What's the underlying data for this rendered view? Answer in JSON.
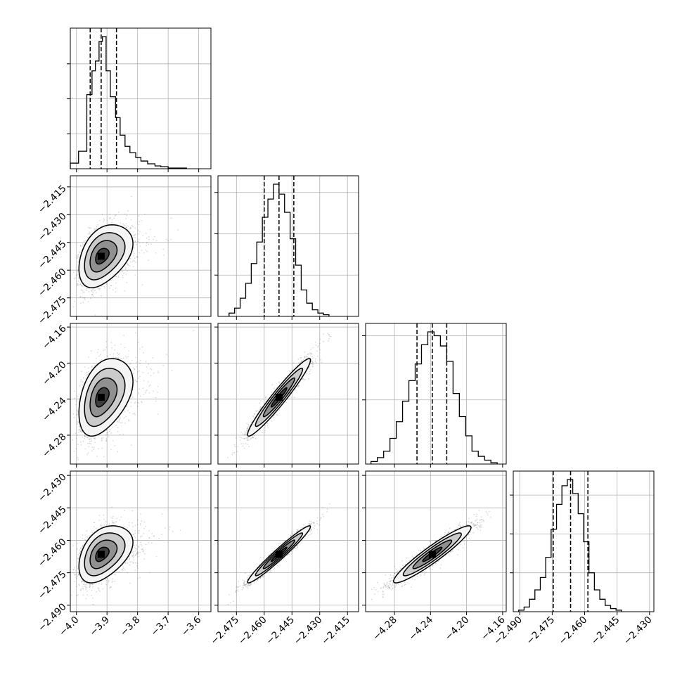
{
  "chart_data": {
    "type": "corner",
    "title": "",
    "parameters": [
      {
        "label": "",
        "range": [
          -4.02,
          -3.56
        ],
        "ticks": [
          -4.0,
          -3.9,
          -3.8,
          -3.7,
          -3.6
        ],
        "tick_labels": [
          "−4.0",
          "−3.9",
          "−3.8",
          "−3.7",
          "−3.6"
        ],
        "quantiles": [
          -3.955,
          -3.919,
          -3.869
        ],
        "histogram": {
          "edges": [
            -4.02,
            -3.993,
            -3.966,
            -3.949,
            -3.938,
            -3.926,
            -3.915,
            -3.903,
            -3.889,
            -3.872,
            -3.857,
            -3.841,
            -3.825,
            -3.806,
            -3.789,
            -3.767,
            -3.743,
            -3.724,
            -3.7,
            -3.672,
            -3.64
          ],
          "counts": [
            8,
            25,
            106,
            140,
            154,
            182,
            189,
            140,
            103,
            73,
            48,
            32,
            23,
            16,
            11,
            7,
            4,
            3,
            1,
            1
          ]
        }
      },
      {
        "label": "",
        "range": [
          -2.485,
          -2.409
        ],
        "ticks": [
          -2.415,
          -2.43,
          -2.445,
          -2.46,
          -2.475
        ],
        "tick_labels": [
          "−2.415",
          "−2.430",
          "−2.445",
          "−2.460",
          "−2.475"
        ],
        "quantiles": [
          -2.46,
          -2.452,
          -2.444
        ],
        "histogram": {
          "edges": [
            -2.479,
            -2.476,
            -2.473,
            -2.47,
            -2.467,
            -2.464,
            -2.461,
            -2.458,
            -2.455,
            -2.452,
            -2.449,
            -2.446,
            -2.443,
            -2.44,
            -2.437,
            -2.434,
            -2.431,
            -2.428,
            -2.425
          ],
          "counts": [
            2,
            5,
            11,
            20,
            32,
            45,
            60,
            71,
            80,
            74,
            63,
            47,
            31,
            16,
            8,
            4,
            2,
            1
          ]
        }
      },
      {
        "label": "",
        "range": [
          -4.312,
          -4.156
        ],
        "ticks": [
          -4.16,
          -4.2,
          -4.24,
          -4.28
        ],
        "tick_labels": [
          "−4.16",
          "−4.20",
          "−4.24",
          "−4.28"
        ],
        "quantiles": [
          -4.255,
          -4.238,
          -4.222
        ],
        "histogram": {
          "edges": [
            -4.306,
            -4.299,
            -4.292,
            -4.285,
            -4.278,
            -4.271,
            -4.264,
            -4.257,
            -4.25,
            -4.243,
            -4.236,
            -4.229,
            -4.222,
            -4.215,
            -4.208,
            -4.201,
            -4.194,
            -4.187,
            -4.18,
            -4.173,
            -4.166
          ],
          "counts": [
            2,
            5,
            10,
            20,
            33,
            49,
            65,
            78,
            93,
            103,
            100,
            92,
            80,
            55,
            37,
            22,
            10,
            6,
            3,
            1
          ]
        }
      },
      {
        "label": "",
        "range": [
          -2.493,
          -2.428
        ],
        "ticks": [
          -2.43,
          -2.445,
          -2.46,
          -2.475,
          -2.49
        ],
        "tick_labels": [
          "−2.430",
          "−2.445",
          "−2.460",
          "−2.475",
          "−2.490"
        ],
        "quantiles": [
          -2.4745,
          -2.4665,
          -2.4585
        ],
        "histogram": {
          "edges": [
            -2.4905,
            -2.488,
            -2.4855,
            -2.483,
            -2.4805,
            -2.478,
            -2.4755,
            -2.473,
            -2.4705,
            -2.468,
            -2.4655,
            -2.463,
            -2.4605,
            -2.458,
            -2.4555,
            -2.453,
            -2.4505,
            -2.448,
            -2.4455,
            -2.443
          ],
          "counts": [
            1,
            3,
            8,
            14,
            22,
            35,
            53,
            69,
            81,
            85,
            76,
            63,
            45,
            25,
            14,
            8,
            4,
            2,
            1
          ]
        }
      }
    ],
    "pairs": [
      {
        "x": 0,
        "y": 1,
        "mean": [
          -3.919,
          -2.4525
        ],
        "sd": [
          0.04,
          0.0085
        ],
        "corr": 0.4,
        "skew_x": 0.05
      },
      {
        "x": 0,
        "y": 2,
        "mean": [
          -3.919,
          -4.238
        ],
        "sd": [
          0.04,
          0.0215
        ],
        "corr": 0.4,
        "skew_x": 0.05
      },
      {
        "x": 0,
        "y": 3,
        "mean": [
          -3.919,
          -2.4665
        ],
        "sd": [
          0.04,
          0.0066
        ],
        "corr": 0.42,
        "skew_x": 0.05
      },
      {
        "x": 1,
        "y": 2,
        "mean": [
          -2.452,
          -4.238
        ],
        "sd": [
          0.0085,
          0.0215
        ],
        "corr": 0.96
      },
      {
        "x": 1,
        "y": 3,
        "mean": [
          -2.452,
          -2.4665
        ],
        "sd": [
          0.0085,
          0.0066
        ],
        "corr": 0.97
      },
      {
        "x": 2,
        "y": 3,
        "mean": [
          -4.238,
          -2.4665
        ],
        "sd": [
          0.0215,
          0.0066
        ],
        "corr": 0.94
      }
    ],
    "contour_levels": [
      0.5,
      1.0,
      1.5,
      2.0
    ],
    "grid": true,
    "quantile_style": "dashed"
  }
}
